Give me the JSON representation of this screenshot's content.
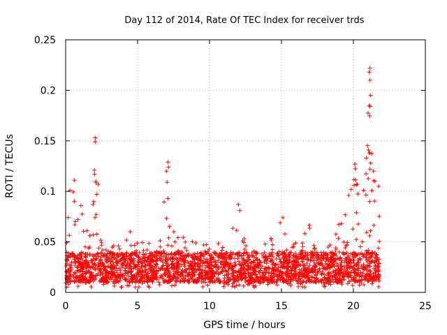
{
  "chart_data": {
    "type": "scatter",
    "title": "Day 112 of 2014, Rate Of TEC Index for receiver trds",
    "xlabel": "GPS time / hours",
    "ylabel": "ROTI / TECUs",
    "xlim": [
      0,
      25
    ],
    "ylim": [
      0,
      0.25
    ],
    "x_ticks": [
      {
        "value": 0,
        "label": "0"
      },
      {
        "value": 5,
        "label": "5"
      },
      {
        "value": 10,
        "label": "10"
      },
      {
        "value": 15,
        "label": "15"
      },
      {
        "value": 20,
        "label": "20"
      },
      {
        "value": 25,
        "label": "25"
      }
    ],
    "y_ticks": [
      {
        "value": 0,
        "label": "0"
      },
      {
        "value": 0.05,
        "label": "0.05"
      },
      {
        "value": 0.1,
        "label": "0.1"
      },
      {
        "value": 0.15,
        "label": "0.15"
      },
      {
        "value": 0.2,
        "label": "0.2"
      },
      {
        "value": 0.25,
        "label": "0.25"
      }
    ],
    "grid": true,
    "marker": "+",
    "color": "#ff0000",
    "series": [
      {
        "name": "ROTI",
        "x_range": [
          0,
          21.8
        ],
        "baseline_band": [
          0.01,
          0.04
        ],
        "envelope": [
          {
            "x": 0.0,
            "y": 0.06
          },
          {
            "x": 0.3,
            "y": 0.1
          },
          {
            "x": 0.6,
            "y": 0.11
          },
          {
            "x": 1.0,
            "y": 0.09
          },
          {
            "x": 1.5,
            "y": 0.06
          },
          {
            "x": 1.8,
            "y": 0.08
          },
          {
            "x": 2.1,
            "y": 0.15
          },
          {
            "x": 2.5,
            "y": 0.05
          },
          {
            "x": 3.5,
            "y": 0.05
          },
          {
            "x": 4.3,
            "y": 0.07
          },
          {
            "x": 5.0,
            "y": 0.05
          },
          {
            "x": 6.5,
            "y": 0.05
          },
          {
            "x": 7.1,
            "y": 0.13
          },
          {
            "x": 7.6,
            "y": 0.06
          },
          {
            "x": 9.0,
            "y": 0.05
          },
          {
            "x": 11.0,
            "y": 0.05
          },
          {
            "x": 12.0,
            "y": 0.087
          },
          {
            "x": 12.5,
            "y": 0.05
          },
          {
            "x": 14.0,
            "y": 0.05
          },
          {
            "x": 15.1,
            "y": 0.074
          },
          {
            "x": 16.0,
            "y": 0.06
          },
          {
            "x": 17.0,
            "y": 0.07
          },
          {
            "x": 18.0,
            "y": 0.04
          },
          {
            "x": 19.0,
            "y": 0.07
          },
          {
            "x": 20.1,
            "y": 0.127
          },
          {
            "x": 20.5,
            "y": 0.08
          },
          {
            "x": 21.0,
            "y": 0.22
          },
          {
            "x": 21.3,
            "y": 0.13
          },
          {
            "x": 21.8,
            "y": 0.105
          }
        ],
        "outliers": [
          {
            "x": 2.05,
            "y": 0.153
          },
          {
            "x": 2.05,
            "y": 0.149
          },
          {
            "x": 2.0,
            "y": 0.121
          },
          {
            "x": 2.1,
            "y": 0.11
          },
          {
            "x": 2.15,
            "y": 0.097
          },
          {
            "x": 0.3,
            "y": 0.101
          },
          {
            "x": 0.6,
            "y": 0.111
          },
          {
            "x": 7.1,
            "y": 0.129
          },
          {
            "x": 7.15,
            "y": 0.124
          },
          {
            "x": 7.0,
            "y": 0.12
          },
          {
            "x": 7.05,
            "y": 0.109
          },
          {
            "x": 7.1,
            "y": 0.093
          },
          {
            "x": 12.0,
            "y": 0.087
          },
          {
            "x": 12.1,
            "y": 0.081
          },
          {
            "x": 15.1,
            "y": 0.074
          },
          {
            "x": 20.1,
            "y": 0.127
          },
          {
            "x": 20.05,
            "y": 0.106
          },
          {
            "x": 21.15,
            "y": 0.222
          },
          {
            "x": 21.1,
            "y": 0.218
          },
          {
            "x": 21.15,
            "y": 0.21
          },
          {
            "x": 21.2,
            "y": 0.195
          },
          {
            "x": 21.1,
            "y": 0.185
          },
          {
            "x": 21.15,
            "y": 0.184
          },
          {
            "x": 21.05,
            "y": 0.141
          },
          {
            "x": 21.1,
            "y": 0.138
          },
          {
            "x": 21.2,
            "y": 0.128
          },
          {
            "x": 21.15,
            "y": 0.122
          },
          {
            "x": 21.4,
            "y": 0.12
          },
          {
            "x": 21.5,
            "y": 0.11
          },
          {
            "x": 21.75,
            "y": 0.105
          },
          {
            "x": 20.7,
            "y": 0.101
          }
        ]
      }
    ]
  }
}
